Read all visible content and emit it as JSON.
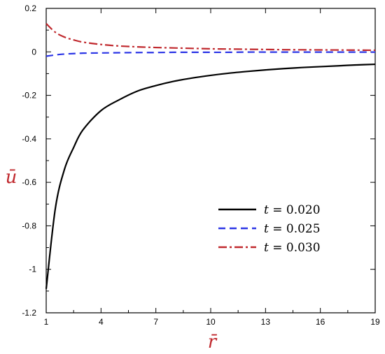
{
  "chart_data": {
    "type": "line",
    "title": "",
    "xlabel": "r̄",
    "ylabel": "ū",
    "xlim": [
      1,
      19
    ],
    "ylim": [
      -1.2,
      0.2
    ],
    "xticks": [
      1,
      4,
      7,
      10,
      13,
      16,
      19
    ],
    "xtick_labels": [
      "1",
      "4",
      "7",
      "10",
      "13",
      "16",
      "19"
    ],
    "yticks": [
      0.2,
      0,
      -0.2,
      -0.4,
      -0.6,
      -0.8,
      -1,
      -1.2
    ],
    "ytick_labels": [
      "0.2",
      "0",
      "-0.2",
      "-0.4",
      "-0.6",
      "-0.8",
      "-1",
      "-1.2"
    ],
    "grid": false,
    "legend_position": "bottom-right",
    "x": [
      1,
      1.5,
      2,
      2.5,
      3,
      4,
      5,
      6,
      7,
      8,
      9,
      10,
      11,
      12,
      13,
      14,
      15,
      16,
      17,
      18,
      19
    ],
    "series": [
      {
        "name_var": "t",
        "name_value": "0.020",
        "color": "#000000",
        "style": "solid",
        "values": [
          -1.09,
          -0.72,
          -0.54,
          -0.44,
          -0.36,
          -0.27,
          -0.22,
          -0.18,
          -0.155,
          -0.135,
          -0.12,
          -0.108,
          -0.098,
          -0.09,
          -0.083,
          -0.077,
          -0.072,
          -0.068,
          -0.064,
          -0.06,
          -0.057
        ]
      },
      {
        "name_var": "t",
        "name_value": "0.025",
        "color": "#2b35e6",
        "style": "dashed",
        "values": [
          -0.02,
          -0.014,
          -0.01,
          -0.008,
          -0.006,
          -0.005,
          -0.004,
          -0.003,
          -0.003,
          -0.002,
          -0.002,
          -0.002,
          -0.002,
          -0.001,
          -0.001,
          -0.001,
          -0.001,
          -0.001,
          -0.001,
          -0.001,
          -0.001
        ]
      },
      {
        "name_var": "t",
        "name_value": "0.030",
        "color": "#c0282d",
        "style": "dashdot",
        "values": [
          0.13,
          0.09,
          0.068,
          0.055,
          0.045,
          0.034,
          0.027,
          0.023,
          0.02,
          0.018,
          0.016,
          0.014,
          0.013,
          0.012,
          0.011,
          0.01,
          0.0095,
          0.009,
          0.0085,
          0.008,
          0.0075
        ]
      }
    ]
  }
}
